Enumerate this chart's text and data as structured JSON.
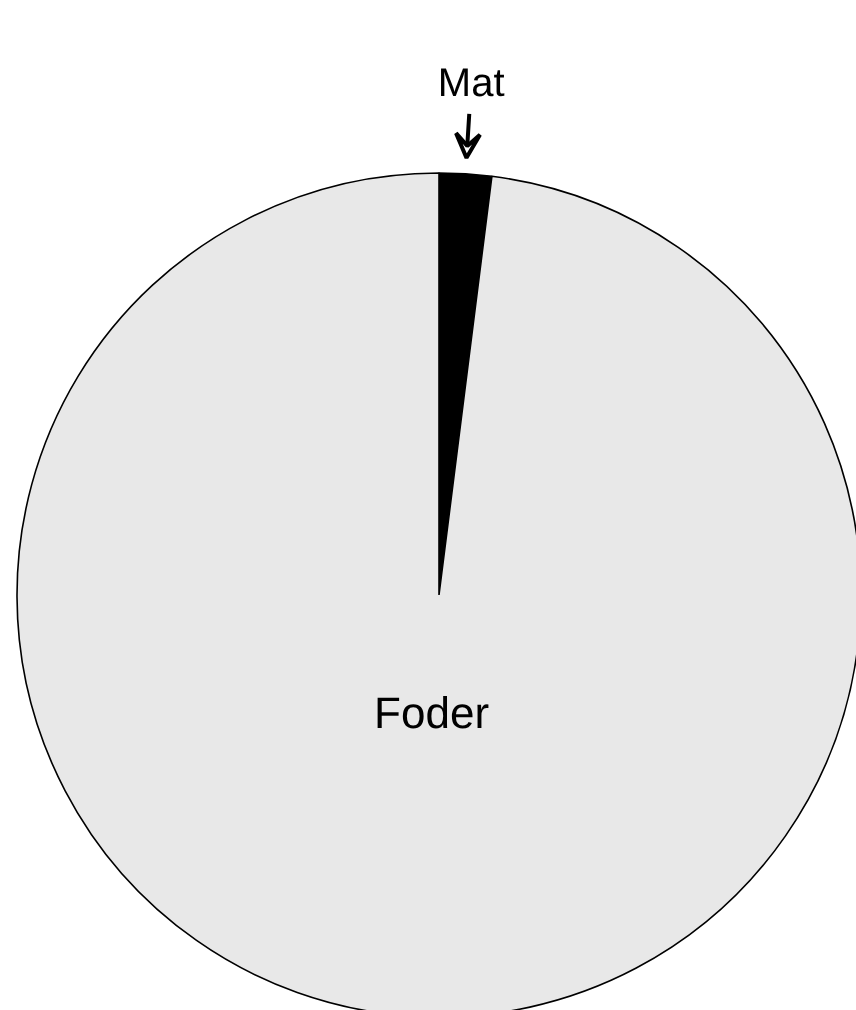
{
  "chart_data": {
    "type": "pie",
    "categories": [
      "Mat",
      "Foder"
    ],
    "values": [
      2,
      98
    ],
    "colors": [
      "#000000",
      "#e8e8e8"
    ]
  }
}
